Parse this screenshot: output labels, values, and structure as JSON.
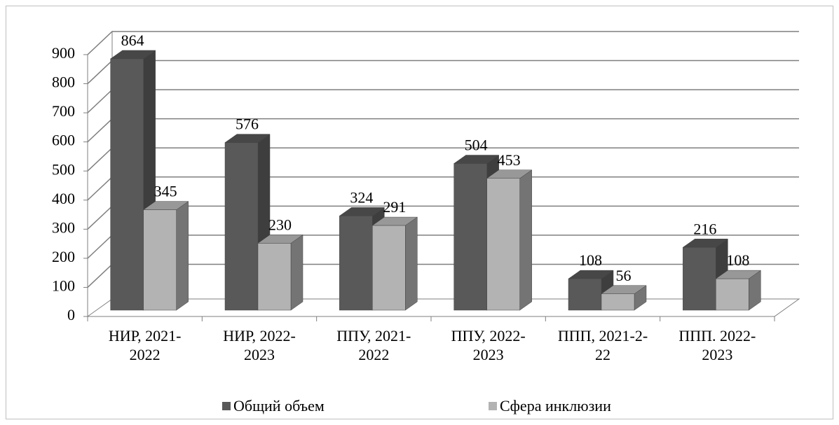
{
  "chart_data": {
    "type": "bar3d",
    "categories": [
      "НИР, 2021-2022",
      "НИР, 2022-2023",
      "ППУ, 2021-2022",
      "ППУ, 2022-2023",
      "ППП, 2021-2-22",
      "ППП. 2022-2023"
    ],
    "series": [
      {
        "name": "Общий объем",
        "color": "#595959",
        "values": [
          864,
          576,
          324,
          504,
          108,
          216
        ]
      },
      {
        "name": "Сфера инклюзии",
        "color": "#b3b3b3",
        "values": [
          345,
          230,
          291,
          453,
          56,
          108
        ]
      }
    ],
    "ylim": [
      0,
      900
    ],
    "yticks": [
      0,
      100,
      200,
      300,
      400,
      500,
      600,
      700,
      800,
      900
    ],
    "grid": true,
    "legend": "bottom"
  }
}
